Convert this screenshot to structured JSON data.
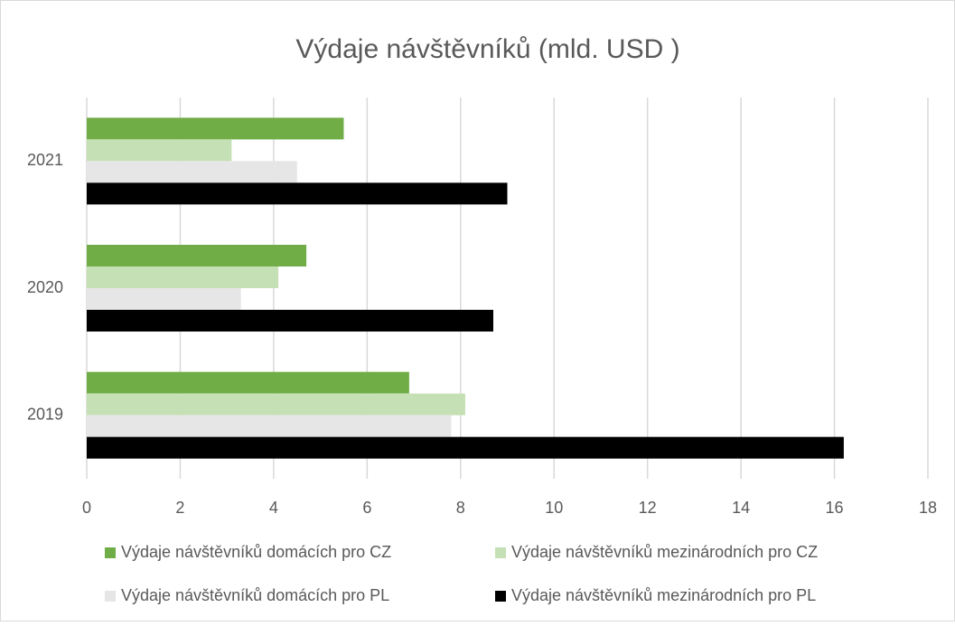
{
  "chart_data": {
    "type": "hbar",
    "title": "Výdaje návštěvníků (mld. USD )",
    "categories": [
      "2019",
      "2020",
      "2021"
    ],
    "series": [
      {
        "name": "Výdaje návštěvníků domácích pro CZ",
        "color": "#70ad47",
        "values": [
          6.9,
          4.7,
          5.5
        ]
      },
      {
        "name": "Výdaje návštěvníků mezinárodních pro CZ",
        "color": "#c5e0b4",
        "values": [
          8.1,
          4.1,
          3.1
        ]
      },
      {
        "name": "Výdaje návštěvníků domácích pro PL",
        "color": "#e7e6e6",
        "values": [
          7.8,
          3.3,
          4.5
        ]
      },
      {
        "name": "Výdaje návštěvníků mezinárodních pro PL",
        "color": "#000000",
        "values": [
          16.2,
          8.7,
          9.0
        ]
      }
    ],
    "xlim": [
      0,
      18
    ],
    "xticks": [
      0,
      2,
      4,
      6,
      8,
      10,
      12,
      14,
      16,
      18
    ],
    "grid": true,
    "legend": "bottom"
  }
}
